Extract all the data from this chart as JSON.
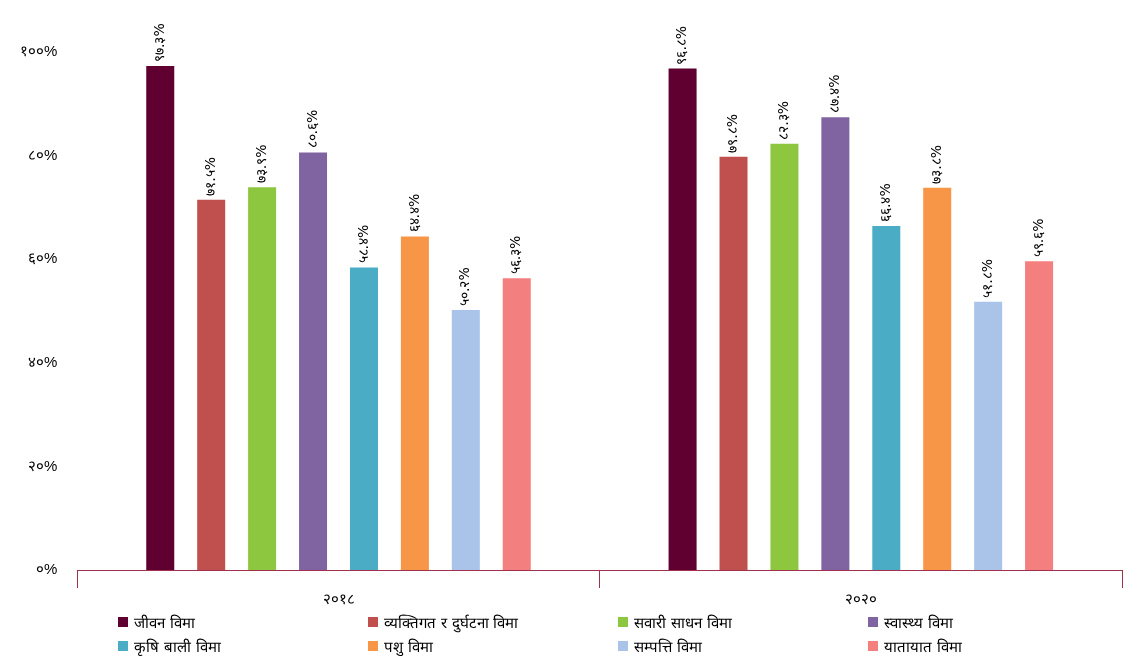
{
  "chart_data": {
    "type": "bar",
    "categories": [
      "२०१८",
      "२०२०"
    ],
    "series": [
      {
        "name": "जीवन विमा",
        "color": "#5f0030",
        "values": [
          97.3,
          96.8
        ],
        "value_labels": [
          "९७.३%",
          "९६.८%"
        ]
      },
      {
        "name": "व्यक्तिगत र दुर्घटना विमा",
        "color": "#c0504d",
        "values": [
          71.5,
          79.8
        ],
        "value_labels": [
          "७१.५%",
          "७९.८%"
        ]
      },
      {
        "name": "सवारी साधन विमा",
        "color": "#8dc63f",
        "values": [
          73.9,
          82.3
        ],
        "value_labels": [
          "७३.९%",
          "८२.३%"
        ]
      },
      {
        "name": "स्वास्थ्य विमा",
        "color": "#8064a2",
        "values": [
          80.6,
          87.4
        ],
        "value_labels": [
          "८०.६%",
          "८७.४%"
        ]
      },
      {
        "name": "कृषि बाली विमा",
        "color": "#4bacc6",
        "values": [
          58.4,
          66.4
        ],
        "value_labels": [
          "५८.४%",
          "६६.४%"
        ]
      },
      {
        "name": "पशु विमा",
        "color": "#f79646",
        "values": [
          64.4,
          73.8
        ],
        "value_labels": [
          "६४.४%",
          "७३.८%"
        ]
      },
      {
        "name": "सम्पत्ति विमा",
        "color": "#a9c4e8",
        "values": [
          50.2,
          51.8
        ],
        "value_labels": [
          "५०.२%",
          "५१.८%"
        ]
      },
      {
        "name": "यातायात विमा",
        "color": "#f47f7f",
        "values": [
          56.3,
          59.6
        ],
        "value_labels": [
          "५६.३%",
          "५९.६%"
        ]
      }
    ],
    "ylim": [
      0,
      100
    ],
    "yticks": [
      {
        "value": 0,
        "label": "०%"
      },
      {
        "value": 20,
        "label": "२०%"
      },
      {
        "value": 40,
        "label": "४०%"
      },
      {
        "value": 60,
        "label": "६०%"
      },
      {
        "value": 80,
        "label": "८०%"
      },
      {
        "value": 100,
        "label": "१००%"
      }
    ],
    "grid": false,
    "legend": "bottom"
  }
}
